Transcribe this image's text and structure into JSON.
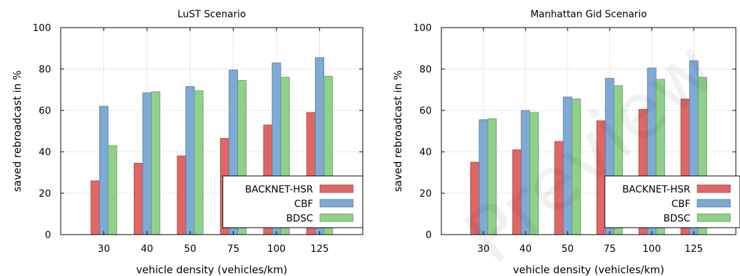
{
  "watermark": "Preview",
  "chart_data": [
    {
      "type": "bar",
      "title": "LuST Scenario",
      "xlabel": "vehicle density (vehicles/km)",
      "ylabel": "saved rebroadcast in %",
      "ylim": [
        0,
        100
      ],
      "yticks": [
        "0",
        "20",
        "40",
        "60",
        "80",
        "100"
      ],
      "categories": [
        "30",
        "40",
        "50",
        "75",
        "100",
        "125"
      ],
      "grid": true,
      "legend_position": "bottom-right",
      "series": [
        {
          "name": "BACKNET-HSR",
          "color": "#e06666",
          "values": [
            26,
            34.5,
            38,
            46.5,
            53,
            59
          ]
        },
        {
          "name": "CBF",
          "color": "#7eaad6",
          "values": [
            62,
            68.5,
            71.5,
            79.5,
            83,
            85.5
          ]
        },
        {
          "name": "BDSC",
          "color": "#8fd18a",
          "values": [
            43,
            69,
            69.5,
            74.5,
            76,
            76.5
          ]
        }
      ]
    },
    {
      "type": "bar",
      "title": "Manhattan Gid Scenario",
      "xlabel": "vehicle density (vehicles/km)",
      "ylabel": "saved rebroadcast in %",
      "ylim": [
        0,
        100
      ],
      "yticks": [
        "0",
        "20",
        "40",
        "60",
        "80",
        "100"
      ],
      "categories": [
        "30",
        "40",
        "50",
        "75",
        "100",
        "125"
      ],
      "grid": true,
      "legend_position": "bottom-right",
      "series": [
        {
          "name": "BACKNET-HSR",
          "color": "#e06666",
          "values": [
            35,
            41,
            45,
            55,
            60.5,
            65.5
          ]
        },
        {
          "name": "CBF",
          "color": "#7eaad6",
          "values": [
            55.5,
            60,
            66.5,
            75.5,
            80.5,
            84
          ]
        },
        {
          "name": "BDSC",
          "color": "#8fd18a",
          "values": [
            56,
            59,
            65.5,
            72,
            75,
            76
          ]
        }
      ]
    }
  ]
}
